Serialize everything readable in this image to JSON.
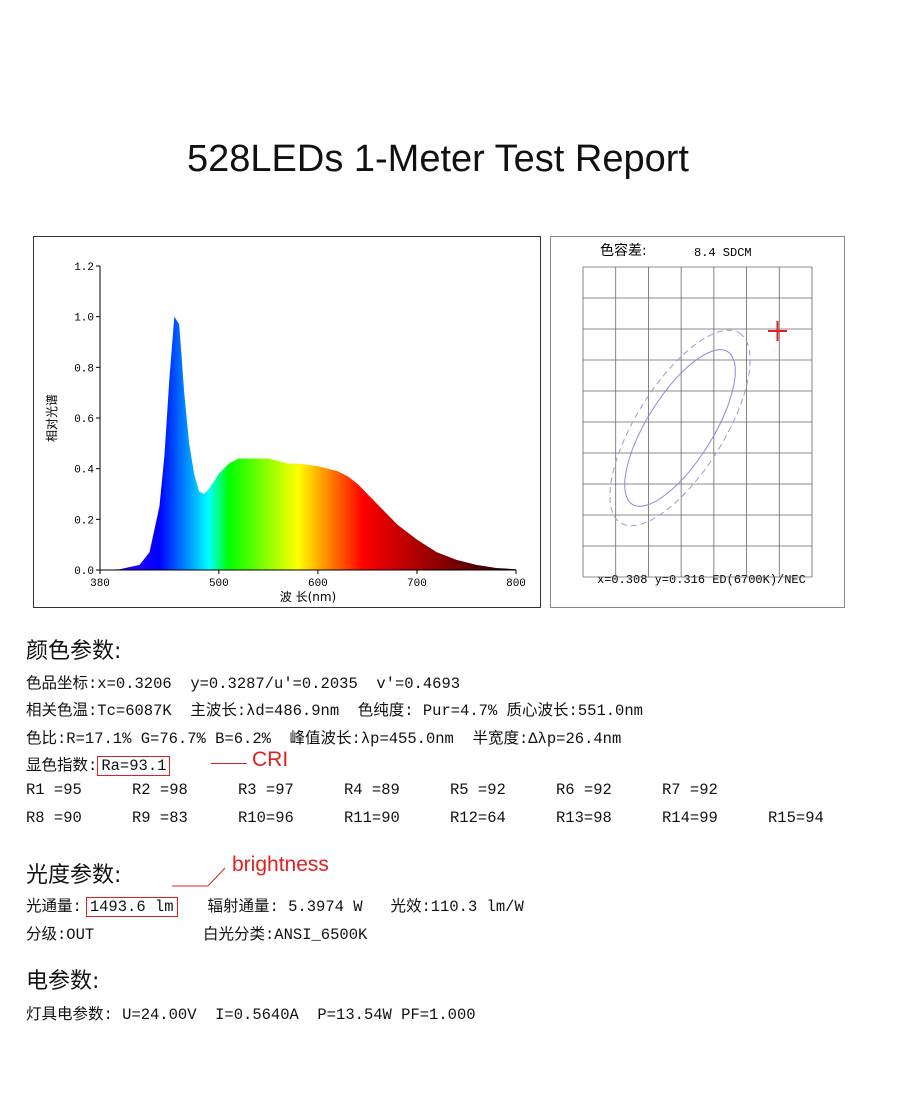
{
  "title": "528LEDs 1-Meter Test Report",
  "chart_data": {
    "type": "area",
    "ylabel": "相对光谱",
    "xlabel": "波 长(nm)",
    "x": [
      380,
      400,
      420,
      430,
      440,
      445,
      450,
      455,
      460,
      465,
      470,
      475,
      480,
      485,
      490,
      500,
      510,
      520,
      530,
      540,
      550,
      560,
      570,
      580,
      590,
      600,
      620,
      630,
      640,
      650,
      660,
      670,
      680,
      690,
      700,
      720,
      740,
      760,
      780,
      800
    ],
    "values": [
      0,
      0.003,
      0.02,
      0.07,
      0.25,
      0.45,
      0.75,
      1.0,
      0.97,
      0.7,
      0.5,
      0.38,
      0.31,
      0.3,
      0.32,
      0.38,
      0.42,
      0.44,
      0.44,
      0.44,
      0.44,
      0.43,
      0.42,
      0.42,
      0.415,
      0.41,
      0.39,
      0.37,
      0.34,
      0.3,
      0.26,
      0.22,
      0.18,
      0.15,
      0.12,
      0.07,
      0.04,
      0.02,
      0.008,
      0.003
    ],
    "xlim": [
      380,
      800
    ],
    "ylim": [
      0,
      1.2
    ],
    "xticks": [
      380,
      500,
      600,
      700,
      800
    ],
    "yticks": [
      {
        "value": 0,
        "label": "0.0"
      },
      0.2,
      0.4,
      0.6,
      0.8,
      {
        "value": 1,
        "label": "1.0"
      },
      1.2
    ]
  },
  "chromaticity": {
    "label": "色容差:",
    "sdcm": "8.4 SDCM",
    "footer": "x=0.308 y=0.316 ED(6700K)/NEC"
  },
  "color_params": {
    "heading": "颜色参数:",
    "lines": [
      "色品坐标:x=0.3206  y=0.3287/u'=0.2035  v'=0.4693",
      "相关色温:Tc=6087K  主波长:λd=486.9nm  色纯度: Pur=4.7% 质心波长:551.0nm",
      "色比:R=17.1% G=76.7% B=6.2%  峰值波长:λp=455.0nm  半宽度:Δλp=26.4nm"
    ],
    "cri_label": "显色指数:",
    "cri_value": "Ra=93.1",
    "cri_note": "CRI",
    "r_values": [
      "R1 =95",
      "R2 =98",
      "R3 =97",
      "R4 =89",
      "R5 =92",
      "R6 =92",
      "R7 =92",
      "R8 =90",
      "R9 =83",
      "R10=96",
      "R11=90",
      "R12=64",
      "R13=98",
      "R14=99",
      "R15=94"
    ]
  },
  "photo_params": {
    "heading": "光度参数:",
    "note": "brightness",
    "flux_label": "光通量:",
    "flux_value": "1493.6 lm",
    "flux_rest": "辐射通量: 5.3974 W   光效:110.3 lm/W",
    "grade": "分级:OUT",
    "white_class": "白光分类:ANSI_6500K"
  },
  "elec_params": {
    "heading": "电参数:",
    "line": "灯具电参数: U=24.00V  I=0.5640A  P=13.54W PF=1.000"
  }
}
